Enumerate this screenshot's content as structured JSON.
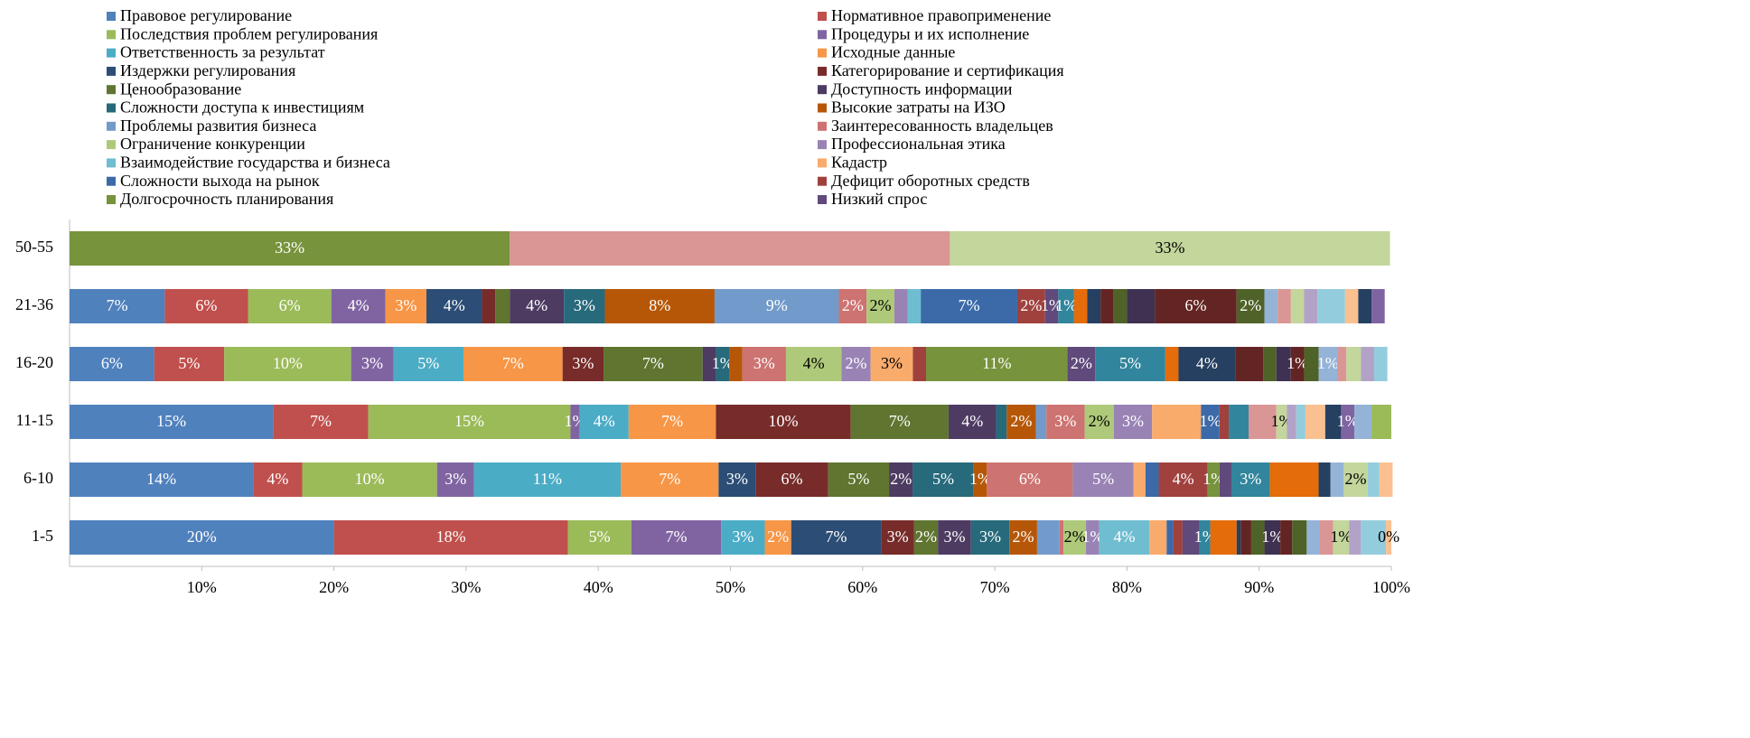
{
  "chart_data": {
    "type": "stacked_bar_horizontal",
    "categories": [
      "1-5",
      "6-10",
      "11-15",
      "16-20",
      "21-36",
      "50-55"
    ],
    "xlim": [
      0,
      100
    ],
    "xticks": [
      {
        "value": 10,
        "label": "10%"
      },
      {
        "value": 20,
        "label": "20%"
      },
      {
        "value": 30,
        "label": "30%"
      },
      {
        "value": 40,
        "label": "40%"
      },
      {
        "value": 50,
        "label": "50%"
      },
      {
        "value": 60,
        "label": "60%"
      },
      {
        "value": 70,
        "label": "70%"
      },
      {
        "value": 80,
        "label": "80%"
      },
      {
        "value": 90,
        "label": "90%"
      },
      {
        "value": 100,
        "label": "100%"
      }
    ],
    "legend": "top",
    "series": [
      {
        "name": "Правовое регулирование",
        "color": "#4F81BD",
        "values": [
          20,
          13.9,
          15.4,
          6.4,
          7.2,
          0
        ],
        "value_labels": [
          "20%",
          "14%",
          "15%",
          "6%",
          "7%",
          null
        ]
      },
      {
        "name": "Нормативное правоприменение",
        "color": "#C0504D",
        "values": [
          17.7,
          3.7,
          7.2,
          5.3,
          6.3,
          0
        ],
        "value_labels": [
          "18%",
          "4%",
          "7%",
          "5%",
          "6%",
          null
        ]
      },
      {
        "name": "Последствия проблем регулирования",
        "color": "#9BBB59",
        "values": [
          4.8,
          10.2,
          15.3,
          9.6,
          6.3,
          0
        ],
        "value_labels": [
          "5%",
          "10%",
          "15%",
          "10%",
          "6%",
          null
        ]
      },
      {
        "name": "Процедуры и их исполнение",
        "color": "#8064A2",
        "values": [
          6.8,
          2.8,
          0.7,
          3.2,
          4.1,
          0
        ],
        "value_labels": [
          "7%",
          "3%",
          "1%",
          "3%",
          "4%",
          null
        ]
      },
      {
        "name": "Ответственность за результат",
        "color": "#4BACC6",
        "values": [
          3.3,
          11.1,
          3.7,
          5.3,
          0,
          0
        ],
        "value_labels": [
          "3%",
          "11%",
          "4%",
          "5%",
          null,
          null
        ]
      },
      {
        "name": "Исходные данные",
        "color": "#F79646",
        "values": [
          2.0,
          7.4,
          6.6,
          7.5,
          3.1,
          0
        ],
        "value_labels": [
          "2%",
          "7%",
          "7%",
          "7%",
          "3%",
          null
        ]
      },
      {
        "name": "Издержки регулирования",
        "color": "#2C4D75",
        "values": [
          6.8,
          2.8,
          0,
          0,
          4.2,
          0
        ],
        "value_labels": [
          "7%",
          "3%",
          null,
          null,
          "4%",
          null
        ]
      },
      {
        "name": "Категорирование и сертификация",
        "color": "#772C2A",
        "values": [
          2.5,
          5.5,
          10.2,
          3.1,
          1.0,
          0
        ],
        "value_labels": [
          "3%",
          "6%",
          "10%",
          "3%",
          null,
          null
        ]
      },
      {
        "name": "Ценообразование",
        "color": "#5F7530",
        "values": [
          1.8,
          4.6,
          7.4,
          7.5,
          1.1,
          0
        ],
        "value_labels": [
          "2%",
          "5%",
          "7%",
          "7%",
          null,
          null
        ]
      },
      {
        "name": "Доступность информации",
        "color": "#4D3B62",
        "values": [
          2.5,
          1.8,
          3.6,
          1.0,
          4.1,
          0
        ],
        "value_labels": [
          "3%",
          "2%",
          "4%",
          null,
          "4%",
          null
        ]
      },
      {
        "name": "Сложности доступа к инвестициям",
        "color": "#276A7C",
        "values": [
          2.9,
          4.6,
          0.8,
          1.0,
          3.1,
          0
        ],
        "value_labels": [
          "3%",
          "5%",
          null,
          "1%",
          "3%",
          null
        ]
      },
      {
        "name": "Высокие затраты на ИЗО",
        "color": "#B65708",
        "values": [
          2.1,
          1.0,
          2.2,
          1.0,
          8.3,
          0
        ],
        "value_labels": [
          "2%",
          "1%",
          "2%",
          null,
          "8%",
          null
        ]
      },
      {
        "name": "Проблемы развития бизнеса",
        "color": "#729ACA",
        "values": [
          1.7,
          0,
          0.8,
          0,
          9.4,
          0
        ],
        "value_labels": [
          null,
          null,
          null,
          null,
          "9%",
          null
        ]
      },
      {
        "name": "Заинтересованность владельцев",
        "color": "#CD7371",
        "values": [
          0.3,
          6.5,
          2.9,
          3.3,
          2.1,
          0
        ],
        "value_labels": [
          null,
          "6%",
          "3%",
          "3%",
          "2%",
          null
        ]
      },
      {
        "name": "Ограничение конкуренции",
        "color": "#AFC97A",
        "values": [
          1.7,
          0,
          2.2,
          4.2,
          2.1,
          0
        ],
        "value_labels": [
          "2%",
          null,
          "2%",
          "4%",
          "2%",
          null
        ]
      },
      {
        "name": "Профессиональная этика",
        "color": "#9983B5",
        "values": [
          1.0,
          4.6,
          2.9,
          2.2,
          1.0,
          0
        ],
        "value_labels": [
          "1%",
          "5%",
          "3%",
          "2%",
          null,
          null
        ]
      },
      {
        "name": "Взаимодействие государства и бизнеса",
        "color": "#6FBDD1",
        "values": [
          3.8,
          0,
          0,
          0,
          1.0,
          0
        ],
        "value_labels": [
          "4%",
          null,
          null,
          null,
          null,
          null
        ]
      },
      {
        "name": "Кадастр",
        "color": "#F9AB6B",
        "values": [
          1.3,
          0.9,
          3.7,
          3.2,
          0,
          0
        ],
        "value_labels": [
          null,
          null,
          null,
          "3%",
          null,
          null
        ]
      },
      {
        "name": "Сложности выхода на рынок",
        "color": "#3C6AA8",
        "values": [
          0.5,
          1.0,
          1.4,
          0,
          7.3,
          0
        ],
        "value_labels": [
          null,
          null,
          "1%",
          null,
          "7%",
          null
        ]
      },
      {
        "name": "Дефицит оборотных средств",
        "color": "#A0413E",
        "values": [
          0.7,
          3.7,
          0.7,
          1.0,
          2.1,
          0
        ],
        "value_labels": [
          null,
          "4%",
          null,
          null,
          "2%",
          null
        ]
      },
      {
        "name": "Долгосрочность планирования",
        "color": "#77933C",
        "values": [
          0,
          0.9,
          0,
          10.7,
          0,
          33.3
        ],
        "value_labels": [
          null,
          "1%",
          null,
          "11%",
          null,
          "33%"
        ]
      },
      {
        "name": "Низкий спрос",
        "color": "#5F4A7B",
        "values": [
          1.3,
          0.9,
          0,
          2.1,
          1.0,
          0
        ],
        "value_labels": [
          null,
          null,
          null,
          "2%",
          "1%",
          null
        ]
      },
      {
        "color": "#31859C",
        "values": [
          0.8,
          2.9,
          1.5,
          5.3,
          1.2,
          0
        ],
        "value_labels": [
          "1%",
          "3%",
          null,
          "5%",
          "1%",
          null
        ]
      },
      {
        "color": "#E46C0A",
        "values": [
          2.0,
          3.7,
          0,
          1.0,
          1.0,
          0
        ]
      },
      {
        "color": "#254061",
        "values": [
          0.3,
          0.9,
          0,
          4.3,
          1.0,
          0
        ],
        "value_labels": [
          null,
          null,
          null,
          "4%",
          null,
          null
        ]
      },
      {
        "color": "#632523",
        "values": [
          0.8,
          0,
          0,
          2.1,
          1.0,
          0
        ]
      },
      {
        "color": "#4F6228",
        "values": [
          1.0,
          0,
          0,
          1.0,
          1.0,
          0
        ]
      },
      {
        "color": "#3F3151",
        "values": [
          1.2,
          0,
          0,
          1.1,
          2.1,
          0
        ],
        "value_labels": [
          "1%",
          null,
          null,
          null,
          null,
          null
        ]
      },
      {
        "color": "#632523",
        "values": [
          0.9,
          0,
          0,
          1.0,
          6.2,
          0
        ],
        "value_labels": [
          null,
          null,
          null,
          "1%",
          "6%",
          null
        ]
      },
      {
        "color": "#4F6228",
        "values": [
          1.1,
          0,
          0,
          1.1,
          2.1,
          0
        ],
        "value_labels": [
          null,
          null,
          null,
          null,
          "2%",
          null
        ]
      },
      {
        "color": "#95B3D7",
        "values": [
          1.0,
          1.0,
          0,
          1.4,
          1.0,
          0
        ],
        "value_labels": [
          null,
          null,
          null,
          "1%",
          null,
          null
        ]
      },
      {
        "color": "#D99694",
        "values": [
          1.0,
          0,
          2.1,
          0.7,
          1.0,
          33.3
        ]
      },
      {
        "color": "#C3D69B",
        "values": [
          1.2,
          1.8,
          0.8,
          1.1,
          1.0,
          33.3
        ],
        "value_labels": [
          "1%",
          "2%",
          "1%",
          null,
          null,
          "33%"
        ]
      },
      {
        "color": "#B3A2C7",
        "values": [
          0.9,
          0,
          0.7,
          1.0,
          1.0,
          0
        ]
      },
      {
        "color": "#93CDDD",
        "values": [
          1.9,
          0.9,
          0.7,
          1.0,
          2.1,
          0
        ]
      },
      {
        "color": "#FAC090",
        "values": [
          0.4,
          1.0,
          1.5,
          0,
          1.0,
          0
        ],
        "value_labels": [
          "0%",
          null,
          null,
          null,
          null,
          null
        ]
      },
      {
        "color": "#254061",
        "values": [
          0,
          0,
          1.2,
          0,
          1.0,
          0
        ]
      },
      {
        "color": "#8064A2",
        "values": [
          0,
          0,
          1.0,
          0,
          1.0,
          0
        ],
        "value_labels": [
          null,
          null,
          "1%",
          null,
          null,
          null
        ]
      },
      {
        "color": "#95B3D7",
        "values": [
          0,
          0,
          1.3,
          0,
          0,
          0
        ]
      },
      {
        "color": "#9BBB59",
        "values": [
          0,
          0,
          1.5,
          0,
          0,
          0
        ]
      }
    ]
  }
}
